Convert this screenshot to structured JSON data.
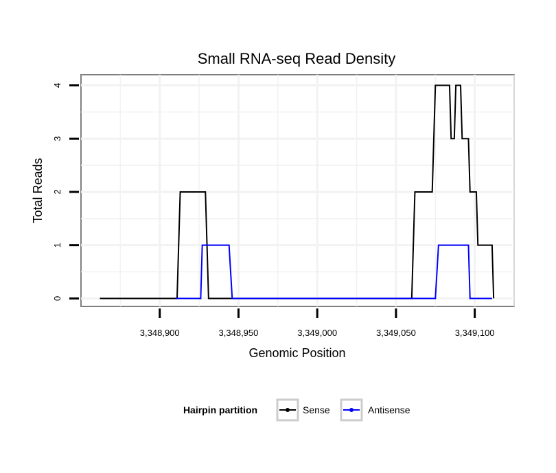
{
  "chart_data": {
    "type": "line",
    "title": "Small RNA-seq Read Density",
    "xlabel": "Genomic Position",
    "ylabel": "Total Reads",
    "xlim": [
      3348850,
      3349125
    ],
    "ylim": [
      -0.15,
      4.2
    ],
    "x_ticks": [
      3348900,
      3348950,
      3349000,
      3349050,
      3349100
    ],
    "x_tick_labels": [
      "3,348,900",
      "3,348,950",
      "3,349,000",
      "3,349,050",
      "3,349,100"
    ],
    "y_ticks": [
      0,
      1,
      2,
      3,
      4
    ],
    "y_tick_labels": [
      "0",
      "1",
      "2",
      "3",
      "4"
    ],
    "grid": true,
    "legend": {
      "title": "Hairpin partition",
      "position": "bottom"
    },
    "series": [
      {
        "name": "Sense",
        "color": "#000000",
        "x": [
          3348862,
          3348911,
          3348913,
          3348929,
          3348931,
          3349060,
          3349062,
          3349073,
          3349075,
          3349084,
          3349085,
          3349087,
          3349088,
          3349091,
          3349092,
          3349096,
          3349097,
          3349101,
          3349102,
          3349104,
          3349105,
          3349111,
          3349112
        ],
        "y": [
          0,
          0,
          2,
          2,
          0,
          0,
          2,
          2,
          4,
          4,
          3,
          3,
          4,
          4,
          3,
          3,
          2,
          2,
          1,
          1,
          1,
          1,
          0
        ]
      },
      {
        "name": "Antisense",
        "color": "#0000ff",
        "x": [
          3348910,
          3348926,
          3348927,
          3348944,
          3348946,
          3349060,
          3349075,
          3349077,
          3349096,
          3349097,
          3349111
        ],
        "y": [
          0,
          0,
          1,
          1,
          0,
          0,
          0,
          1,
          1,
          0,
          0
        ]
      }
    ]
  }
}
